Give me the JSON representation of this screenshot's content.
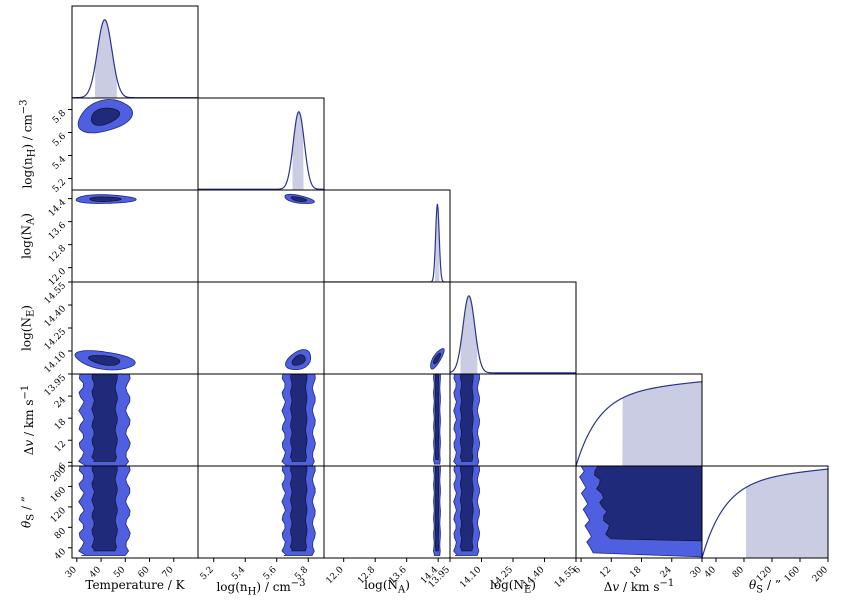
{
  "chart_data": {
    "type": "corner",
    "colors": {
      "outer_contour": "#4e5fe0",
      "inner_contour": "#1f2a7a",
      "line": "#2b3590",
      "credible_fill": "#c9cce3"
    },
    "parameters": [
      {
        "key": "T",
        "label_html": "Temperature / K",
        "range": [
          28,
          80
        ],
        "x_ticks": [
          "30",
          "40",
          "50",
          "60",
          "70"
        ],
        "x_tick_values": [
          30,
          40,
          50,
          60,
          70
        ],
        "y_ticks": [],
        "y_tick_values": [],
        "posterior": {
          "peak": 41.5,
          "sigma": 3.0,
          "tail": 0.004,
          "shape": "gauss"
        },
        "credible_interval": [
          37.5,
          46.5
        ]
      },
      {
        "key": "nH",
        "label_html": "log(n<sub>H</sub>) / cm<sup>−3</sup>",
        "range": [
          5.1,
          5.9
        ],
        "x_ticks": [
          "5.2",
          "5.4",
          "5.6",
          "5.8"
        ],
        "x_tick_values": [
          5.2,
          5.4,
          5.6,
          5.8
        ],
        "y_ticks": [
          "5.2",
          "5.4",
          "5.6",
          "5.8"
        ],
        "y_tick_values": [
          5.2,
          5.4,
          5.6,
          5.8
        ],
        "posterior": {
          "peak": 5.74,
          "sigma": 0.035,
          "tail": 0.01,
          "shape": "gauss"
        },
        "credible_interval": [
          5.7,
          5.77
        ]
      },
      {
        "key": "NA",
        "label_html": "log(N<sub>A</sub>)",
        "range": [
          11.5,
          14.7
        ],
        "x_ticks": [
          "12.0",
          "12.8",
          "13.6",
          "14.4"
        ],
        "x_tick_values": [
          12.0,
          12.8,
          13.6,
          14.4
        ],
        "y_ticks": [
          "12.0",
          "12.8",
          "13.6",
          "14.4"
        ],
        "y_tick_values": [
          12.0,
          12.8,
          13.6,
          14.4
        ],
        "posterior": {
          "peak": 14.38,
          "sigma": 0.045,
          "tail": 0.0,
          "shape": "gauss"
        },
        "credible_interval": [
          14.32,
          14.43
        ]
      },
      {
        "key": "NE",
        "label_html": "log(N<sub>E</sub>)",
        "range": [
          13.95,
          14.55
        ],
        "x_ticks": [
          "13.95",
          "14.10",
          "14.25",
          "14.40",
          "14.55"
        ],
        "x_tick_values": [
          13.95,
          14.1,
          14.25,
          14.4,
          14.55
        ],
        "y_ticks": [
          "13.95",
          "14.10",
          "14.25",
          "14.40",
          "14.55"
        ],
        "y_tick_values": [
          13.95,
          14.1,
          14.25,
          14.4,
          14.55
        ],
        "posterior": {
          "peak": 14.04,
          "sigma": 0.028,
          "tail": 0.015,
          "shape": "gauss"
        },
        "credible_interval": [
          14.0,
          14.08
        ]
      },
      {
        "key": "dv",
        "label_html": "Δ<i>v</i> / km s<sup>−1</sup>",
        "range": [
          5,
          30
        ],
        "x_ticks": [
          "6",
          "12",
          "18",
          "24",
          "30"
        ],
        "x_tick_values": [
          6,
          12,
          18,
          24,
          30
        ],
        "y_ticks": [
          "6",
          "12",
          "18",
          "24"
        ],
        "y_tick_values": [
          6,
          12,
          18,
          24
        ],
        "posterior": {
          "shape": "rising",
          "start": 5.0,
          "max": 0.8
        },
        "credible_interval": [
          14.2,
          30
        ]
      },
      {
        "key": "thetaS",
        "label_html": "<i>θ</i><sub>S</sub> / ”",
        "range": [
          20,
          200
        ],
        "x_ticks": [
          "40",
          "80",
          "120",
          "160",
          "200"
        ],
        "x_tick_values": [
          40,
          80,
          120,
          160,
          200
        ],
        "y_ticks": [
          "40",
          "80",
          "120",
          "160",
          "200"
        ],
        "y_tick_values": [
          40,
          80,
          120,
          160,
          200
        ],
        "posterior": {
          "shape": "rising",
          "start": 20,
          "max": 0.85
        },
        "credible_interval": [
          83,
          200
        ]
      }
    ],
    "joint_posteriors": [
      {
        "x": "T",
        "y": "nH",
        "kind": "blob",
        "cx": 41.5,
        "cy": 5.74,
        "sx": 6.0,
        "sy": 0.07,
        "rho": -0.3
      },
      {
        "x": "T",
        "y": "NA",
        "kind": "blob",
        "cx": 41.5,
        "cy": 14.38,
        "sx": 6.5,
        "sy": 0.08,
        "rho": 0.0
      },
      {
        "x": "nH",
        "y": "NA",
        "kind": "blob",
        "cx": 5.74,
        "cy": 14.38,
        "sx": 0.05,
        "sy": 0.07,
        "rho": 0.2
      },
      {
        "x": "T",
        "y": "NE",
        "kind": "blob",
        "cx": 41.5,
        "cy": 14.04,
        "sx": 6.5,
        "sy": 0.03,
        "rho": 0.15
      },
      {
        "x": "nH",
        "y": "NE",
        "kind": "blob",
        "cx": 5.74,
        "cy": 14.04,
        "sx": 0.045,
        "sy": 0.03,
        "rho": -0.55
      },
      {
        "x": "NA",
        "y": "NE",
        "kind": "blob",
        "cx": 14.37,
        "cy": 14.05,
        "sx": 0.05,
        "sy": 0.04,
        "rho": 0.6
      },
      {
        "x": "T",
        "y": "dv",
        "kind": "band",
        "center": 41.5,
        "width": 6.0,
        "low": 5.0,
        "high": 30
      },
      {
        "x": "nH",
        "y": "dv",
        "kind": "band",
        "center": 5.74,
        "width": 0.06,
        "low": 5.0,
        "high": 30
      },
      {
        "x": "NA",
        "y": "dv",
        "kind": "band",
        "center": 14.37,
        "width": 0.05,
        "low": 5.5,
        "high": 30
      },
      {
        "x": "NE",
        "y": "dv",
        "kind": "band",
        "center": 14.03,
        "width": 0.035,
        "low": 5.0,
        "high": 30
      },
      {
        "x": "T",
        "y": "thetaS",
        "kind": "band",
        "center": 41.5,
        "width": 6.0,
        "low": 25,
        "high": 200
      },
      {
        "x": "nH",
        "y": "thetaS",
        "kind": "band",
        "center": 5.74,
        "width": 0.06,
        "low": 25,
        "high": 200
      },
      {
        "x": "NA",
        "y": "thetaS",
        "kind": "band",
        "center": 14.37,
        "width": 0.05,
        "low": 25,
        "high": 200
      },
      {
        "x": "NE",
        "y": "thetaS",
        "kind": "band",
        "center": 14.03,
        "width": 0.035,
        "low": 25,
        "high": 200
      },
      {
        "x": "dv",
        "y": "thetaS",
        "kind": "region",
        "x_low": 6,
        "y_low": 30
      }
    ]
  }
}
